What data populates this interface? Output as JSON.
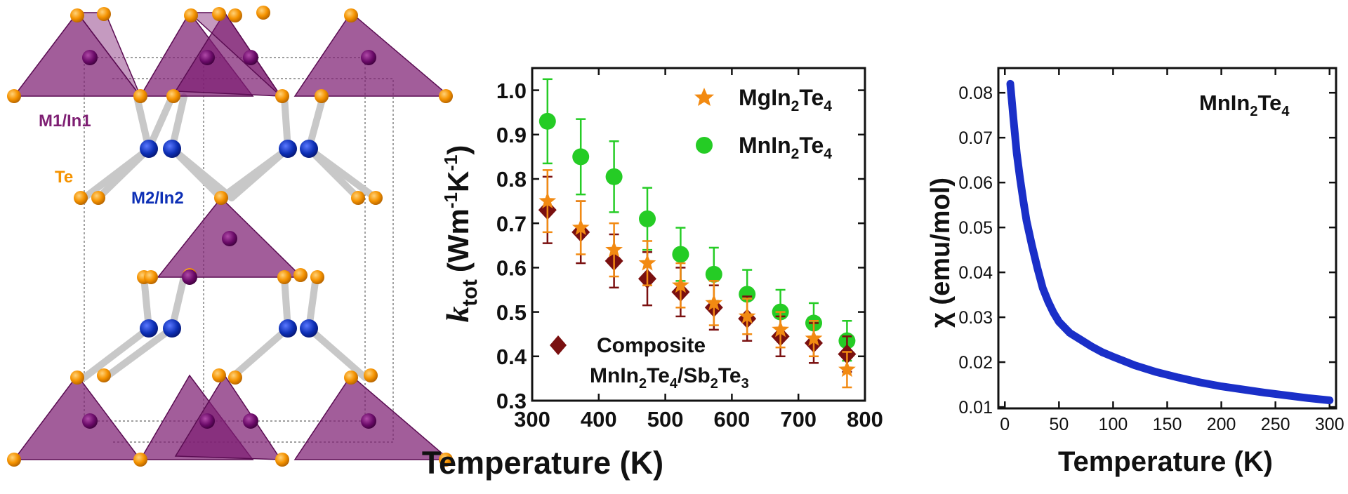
{
  "structure": {
    "labels": {
      "m1": "M1/In1",
      "te": "Te",
      "m2": "M2/In2"
    },
    "colors": {
      "polyhedron": "#7e1f73",
      "te_atom": "#f59300",
      "m1_atom": "#6a0a68",
      "m2_atom": "#0d2fb5",
      "bond": "#c8c8c8"
    }
  },
  "chart_data": [
    {
      "type": "scatter",
      "xlabel": "Temperature (K)",
      "ylabel": "k",
      "ylabel_sub": "tot",
      "ylabel_unit": "(Wm",
      "ylabel_unit_exp1": "-1",
      "ylabel_unit_mid": "K",
      "ylabel_unit_exp2": "-1",
      "ylabel_unit_end": ")",
      "xlim": [
        300,
        800
      ],
      "ylim": [
        0.3,
        1.05
      ],
      "xticks": [
        "300",
        "400",
        "500",
        "600",
        "700",
        "800"
      ],
      "xtick_values": [
        300,
        400,
        500,
        600,
        700,
        800
      ],
      "yticks": [
        "0.3",
        "0.4",
        "0.5",
        "0.6",
        "0.7",
        "0.8",
        "0.9",
        "1.0"
      ],
      "ytick_values": [
        0.3,
        0.4,
        0.5,
        0.6,
        0.7,
        0.8,
        0.9,
        1.0
      ],
      "series": [
        {
          "legend_parts": [
            "MgIn",
            "2",
            "Te",
            "4"
          ],
          "marker": "star",
          "color": "#f28a12",
          "x": [
            323,
            373,
            423,
            473,
            523,
            573,
            623,
            673,
            723,
            773
          ],
          "y": [
            0.75,
            0.69,
            0.64,
            0.61,
            0.56,
            0.52,
            0.49,
            0.46,
            0.44,
            0.37
          ],
          "err": [
            0.07,
            0.06,
            0.06,
            0.05,
            0.05,
            0.05,
            0.04,
            0.04,
            0.04,
            0.04
          ]
        },
        {
          "legend_parts": [
            "MnIn",
            "2",
            "Te",
            "4"
          ],
          "marker": "circle",
          "color": "#25cc25",
          "x": [
            323,
            373,
            423,
            473,
            523,
            573,
            623,
            673,
            723,
            773
          ],
          "y": [
            0.93,
            0.85,
            0.805,
            0.71,
            0.63,
            0.585,
            0.54,
            0.5,
            0.475,
            0.435
          ],
          "err": [
            0.095,
            0.085,
            0.08,
            0.07,
            0.06,
            0.06,
            0.055,
            0.05,
            0.045,
            0.045
          ]
        },
        {
          "legend_parts": [
            "Composite",
            "MnIn",
            "2",
            "Te",
            "4",
            "/Sb",
            "2",
            "Te",
            "3"
          ],
          "marker": "diamond",
          "color": "#7a1010",
          "x": [
            323,
            373,
            423,
            473,
            523,
            573,
            623,
            673,
            723,
            773
          ],
          "y": [
            0.73,
            0.68,
            0.615,
            0.575,
            0.545,
            0.51,
            0.485,
            0.445,
            0.43,
            0.405
          ],
          "err": [
            0.075,
            0.07,
            0.06,
            0.06,
            0.055,
            0.05,
            0.05,
            0.045,
            0.045,
            0.04
          ]
        }
      ]
    },
    {
      "type": "line",
      "annotation_parts": [
        "MnIn",
        "2",
        "Te",
        "4"
      ],
      "xlabel": "Temperature (K)",
      "ylabel": "χ (emu/mol)",
      "xlim": [
        -6,
        306
      ],
      "ylim": [
        0.0097,
        0.0855
      ],
      "xticks": [
        "0",
        "50",
        "100",
        "150",
        "200",
        "250",
        "300"
      ],
      "xtick_values": [
        0,
        50,
        100,
        150,
        200,
        250,
        300
      ],
      "yticks": [
        "0.01",
        "0.02",
        "0.03",
        "0.04",
        "0.05",
        "0.06",
        "0.07",
        "0.08"
      ],
      "ytick_values": [
        0.01,
        0.02,
        0.03,
        0.04,
        0.05,
        0.06,
        0.07,
        0.08
      ],
      "color": "#1a2fc8",
      "x": [
        5,
        8,
        11,
        14,
        17,
        20,
        25,
        30,
        35,
        40,
        45,
        50,
        60,
        70,
        80,
        90,
        100,
        120,
        140,
        160,
        180,
        200,
        220,
        240,
        260,
        280,
        300
      ],
      "y": [
        0.082,
        0.074,
        0.0665,
        0.061,
        0.056,
        0.0515,
        0.046,
        0.041,
        0.0365,
        0.0335,
        0.031,
        0.029,
        0.0265,
        0.025,
        0.0235,
        0.0222,
        0.0212,
        0.0193,
        0.0178,
        0.0166,
        0.0155,
        0.0146,
        0.0139,
        0.0132,
        0.0126,
        0.012,
        0.0115
      ]
    }
  ]
}
